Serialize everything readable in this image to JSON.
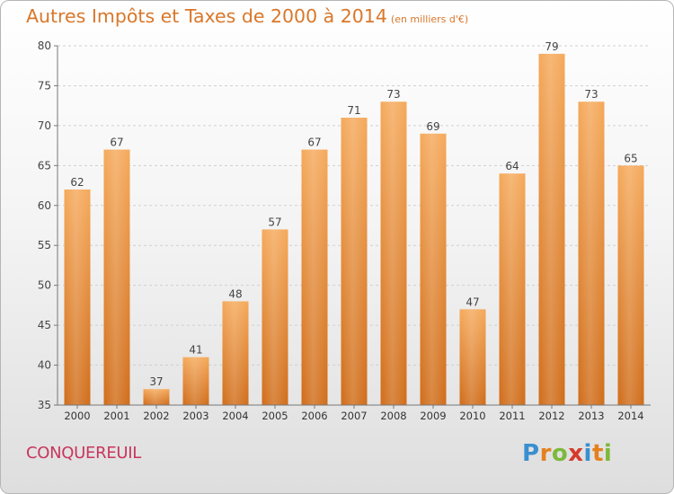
{
  "header": {
    "title": "Autres Impôts et Taxes de 2000 à 2014",
    "subtitle": "(en milliers d'€)"
  },
  "footer": {
    "town": "CONQUEREUIL",
    "logo_text": "Proxiti"
  },
  "colors": {
    "bar_top": "#f5a95b",
    "bar_bottom": "#d06d1a",
    "title": "#d9772a",
    "town": "#c8365c"
  },
  "chart_data": {
    "type": "bar",
    "title": "Autres Impôts et Taxes de 2000 à 2014",
    "subtitle": "(en milliers d'€)",
    "categories": [
      "2000",
      "2001",
      "2002",
      "2003",
      "2004",
      "2005",
      "2006",
      "2007",
      "2008",
      "2009",
      "2010",
      "2011",
      "2012",
      "2013",
      "2014"
    ],
    "values": [
      62,
      67,
      37,
      41,
      48,
      57,
      67,
      71,
      73,
      69,
      47,
      64,
      79,
      73,
      65
    ],
    "ylim": [
      35,
      80
    ],
    "yticks": [
      35,
      40,
      45,
      50,
      55,
      60,
      65,
      70,
      75,
      80
    ],
    "grid": true,
    "xlabel": "",
    "ylabel": ""
  }
}
